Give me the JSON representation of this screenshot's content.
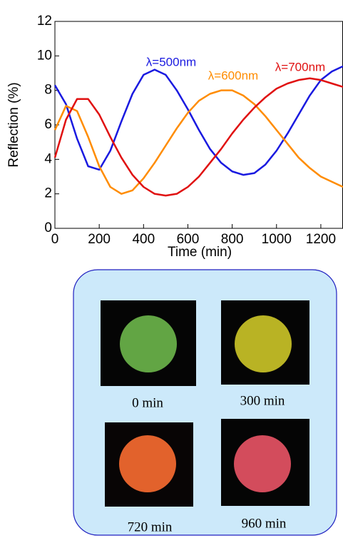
{
  "chart_data": {
    "type": "line",
    "xlabel": "Time (min)",
    "ylabel": "Reflection (%)",
    "x": [
      0,
      50,
      100,
      150,
      200,
      250,
      300,
      350,
      400,
      450,
      500,
      550,
      600,
      650,
      700,
      750,
      800,
      850,
      900,
      950,
      1000,
      1050,
      1100,
      1150,
      1200,
      1250,
      1300
    ],
    "series": [
      {
        "name": "λ=500nm",
        "color": "#1a1ae0",
        "values": [
          8.3,
          7.2,
          5.2,
          3.6,
          3.4,
          4.5,
          6.2,
          7.8,
          8.9,
          9.2,
          8.9,
          8.0,
          6.9,
          5.7,
          4.6,
          3.8,
          3.3,
          3.1,
          3.2,
          3.7,
          4.5,
          5.5,
          6.6,
          7.7,
          8.6,
          9.1,
          9.4
        ]
      },
      {
        "name": "λ=600nm",
        "color": "#ff8c00",
        "values": [
          5.7,
          7.1,
          6.8,
          5.3,
          3.6,
          2.4,
          2.0,
          2.2,
          2.9,
          3.8,
          4.8,
          5.8,
          6.7,
          7.4,
          7.8,
          8.0,
          8.0,
          7.7,
          7.2,
          6.5,
          5.7,
          4.9,
          4.1,
          3.5,
          3.0,
          2.7,
          2.4
        ]
      },
      {
        "name": "λ=700nm",
        "color": "#e01010",
        "values": [
          4.1,
          6.3,
          7.5,
          7.5,
          6.6,
          5.3,
          4.1,
          3.1,
          2.4,
          2.0,
          1.9,
          2.0,
          2.4,
          3.0,
          3.8,
          4.6,
          5.5,
          6.3,
          7.0,
          7.6,
          8.1,
          8.4,
          8.6,
          8.7,
          8.6,
          8.4,
          8.2
        ]
      }
    ],
    "xlim": [
      0,
      1300
    ],
    "xticks": [
      0,
      200,
      400,
      600,
      800,
      1000,
      1200
    ],
    "ylim": [
      0,
      12
    ],
    "yticks": [
      0,
      2,
      4,
      6,
      8,
      10,
      12
    ]
  },
  "panel": {
    "images": [
      {
        "caption": "0 min"
      },
      {
        "caption": "300 min"
      },
      {
        "caption": "720 min"
      },
      {
        "caption": "960 min"
      }
    ]
  }
}
